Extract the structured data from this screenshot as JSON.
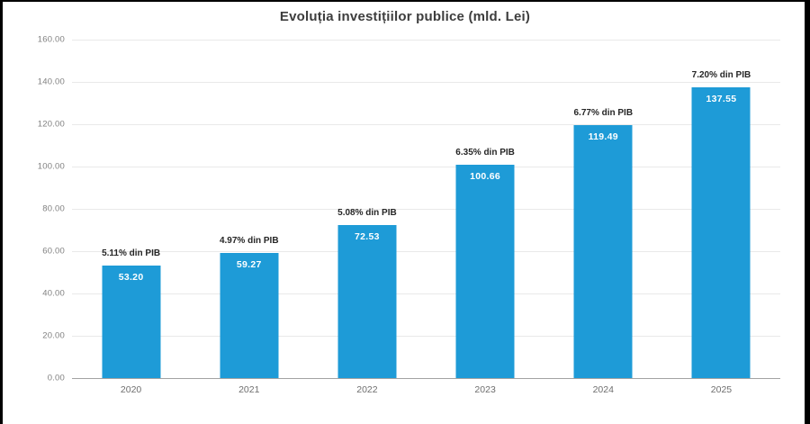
{
  "title": "Evoluția investițiilor publice (mld. Lei)",
  "colors": {
    "bar": "#1e9bd7",
    "grid": "#e9e9e9",
    "axis_line": "#a3a3a3",
    "value_label": "#ffffff",
    "pct_label": "#262626",
    "tick_label": "#808080",
    "title": "#3d3d3d",
    "frame": "#000000",
    "background": "#ffffff"
  },
  "chart_data": {
    "type": "bar",
    "title": "Evoluția investițiilor publice (mld. Lei)",
    "categories": [
      "2020",
      "2021",
      "2022",
      "2023",
      "2024",
      "2025"
    ],
    "values": [
      53.2,
      59.27,
      72.53,
      100.66,
      119.49,
      137.55
    ],
    "value_labels": [
      "53.20",
      "59.27",
      "72.53",
      "100.66",
      "119.49",
      "137.55"
    ],
    "pct_labels": [
      "5.11% din PIB",
      "4.97% din PIB",
      "5.08% din PIB",
      "6.35% din PIB",
      "6.77% din PIB",
      "7.20% din PIB"
    ],
    "xlabel": "",
    "ylabel": "",
    "ylim": [
      0,
      160
    ],
    "ytick_step": 20,
    "ytick_labels": [
      "160.00",
      "140.00",
      "120.00",
      "100.00",
      "80.00",
      "60.00",
      "40.00",
      "20.00",
      "0.00"
    ],
    "grid": true,
    "legend": false
  }
}
